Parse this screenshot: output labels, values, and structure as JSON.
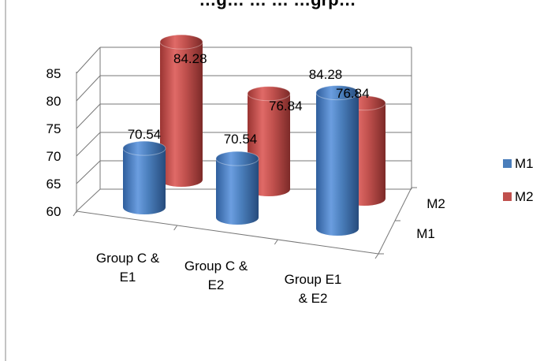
{
  "chart_data": {
    "type": "bar",
    "bar_shape": "cylinder-3d",
    "title": "…g… … … …grp…",
    "categories": [
      "Group C & E1",
      "Group C & E2",
      "Group E1 & E2"
    ],
    "category_lines": [
      [
        "Group C &",
        "E1"
      ],
      [
        "Group C &",
        "E2"
      ],
      [
        "Group E1",
        "& E2"
      ]
    ],
    "series": [
      {
        "name": "M1",
        "color": "#4a7ebb",
        "values": [
          70.54,
          70.54,
          84.28
        ]
      },
      {
        "name": "M2",
        "color": "#c0504d",
        "values": [
          84.28,
          76.84,
          76.84
        ]
      }
    ],
    "data_labels": [
      [
        "70.54",
        "70.54",
        "84.28"
      ],
      [
        "84.28",
        "76.84",
        "76.84"
      ]
    ],
    "y_ticks": [
      "60",
      "65",
      "70",
      "75",
      "80",
      "85"
    ],
    "ylim": [
      60,
      85
    ],
    "depth_labels": [
      "M2",
      "M1"
    ],
    "legend": {
      "position": "right",
      "items": [
        "M1",
        "M2"
      ]
    },
    "grid": true
  }
}
